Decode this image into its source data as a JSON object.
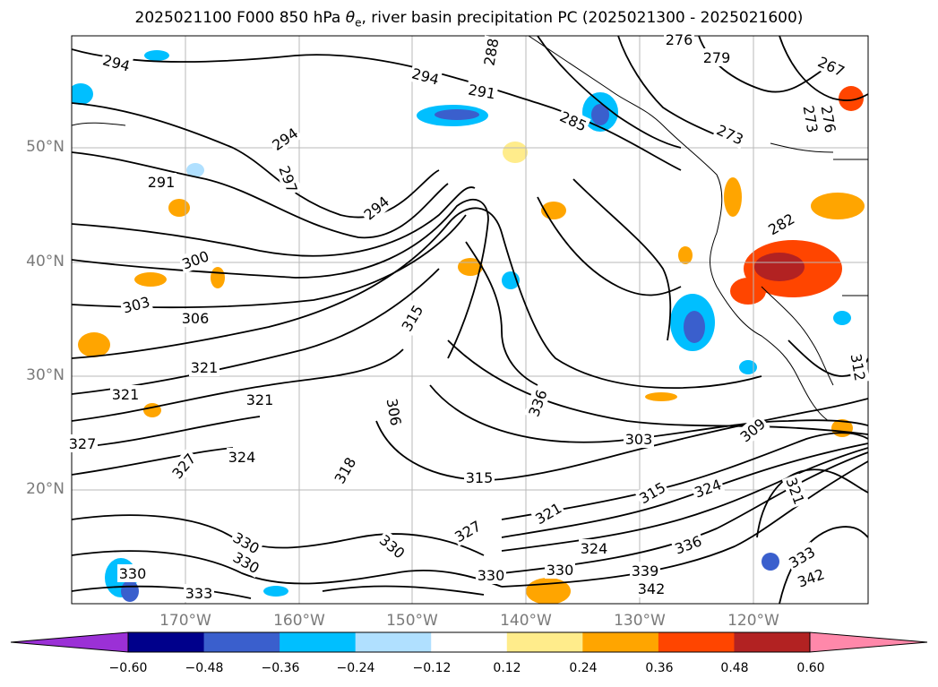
{
  "title": "2025021100 F000 850 hPa θe, river basin precipitation PC (2025021300 - 2025021600)",
  "title_parts": {
    "prefix": "2025021100 F000 850 hPa ",
    "symbol": "θ",
    "subscript": "e",
    "suffix": ", river basin precipitation PC (2025021300 - 2025021600)"
  },
  "lat_labels": [
    "50°N",
    "40°N",
    "30°N",
    "20°N"
  ],
  "lon_labels": [
    "170°W",
    "160°W",
    "150°W",
    "140°W",
    "130°W",
    "120°W"
  ],
  "contour_labels": [
    "294",
    "288",
    "276",
    "279",
    "267",
    "291",
    "294",
    "285",
    "273",
    "273",
    "276",
    "294",
    "297",
    "291",
    "294",
    "282",
    "300",
    "303",
    "306",
    "315",
    "312",
    "321",
    "321",
    "321",
    "306",
    "309",
    "303",
    "336",
    "327",
    "324",
    "318",
    "315",
    "315",
    "324",
    "321",
    "321",
    "327",
    "330",
    "330",
    "330",
    "330",
    "333",
    "330",
    "327",
    "330",
    "324",
    "336",
    "339",
    "342",
    "342",
    "333"
  ],
  "colorbar": {
    "ticks": [
      "−0.60",
      "−0.48",
      "−0.36",
      "−0.24",
      "−0.12",
      "0.12",
      "0.24",
      "0.36",
      "0.48",
      "0.60"
    ],
    "colors": [
      "#9b30d6",
      "#00008b",
      "#3a5fcd",
      "#00bfff",
      "#b0e0ff",
      "#ffffff",
      "#ffec8b",
      "#ffa500",
      "#ff4500",
      "#b22222",
      "#ff88aa"
    ]
  }
}
